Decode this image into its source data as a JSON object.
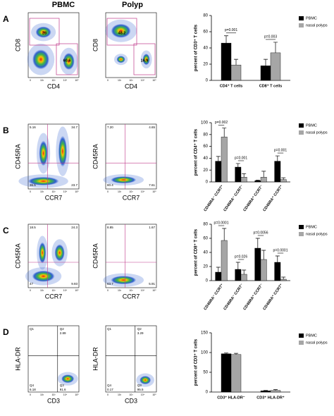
{
  "figure": {
    "columns": [
      "PBMC",
      "Polyp"
    ],
    "flow_ticks": [
      "0",
      "10²",
      "10³",
      "10⁴",
      "10⁵"
    ],
    "panels": [
      {
        "letter": "A",
        "plots": [
          {
            "ylabel": "CD8",
            "xlabel": "CD4",
            "gates": [
              "28",
              "60.6"
            ]
          },
          {
            "ylabel": "CD8",
            "xlabel": "CD4",
            "gates": [
              "48.2",
              "16.9"
            ]
          }
        ]
      },
      {
        "letter": "B",
        "plots": [
          {
            "ylabel": "CD45RA",
            "xlabel": "CCR7",
            "quadrants": {
              "ul": [
                "5.16"
              ],
              "ur": [
                "34.7"
              ],
              "ll": [
                "36.5"
              ],
              "lr": [
                "23.7"
              ]
            }
          },
          {
            "ylabel": "CD45RA",
            "xlabel": "CCR7",
            "quadrants": {
              "ul": [
                "7.20"
              ],
              "ur": [
                "4.65"
              ],
              "ll": [
                "80.4"
              ],
              "lr": [
                "7.61"
              ]
            }
          }
        ]
      },
      {
        "letter": "C",
        "plots": [
          {
            "ylabel": "CD45RA",
            "xlabel": "CCR7",
            "quadrants": {
              "ul": [
                "18.5"
              ],
              "ur": [
                "24.3"
              ],
              "ll": [
                "47"
              ],
              "lr": [
                "9.93"
              ]
            }
          },
          {
            "ylabel": "CD45RA",
            "xlabel": "CCR7",
            "quadrants": {
              "ul": [
                "8.85"
              ],
              "ur": [
                "1.67"
              ],
              "ll": [
                "83.7"
              ],
              "lr": [
                "5.91"
              ]
            }
          }
        ]
      },
      {
        "letter": "D",
        "plots": [
          {
            "ylabel": "HLA-DR",
            "xlabel": "CD3",
            "quadrants": {
              "ul": [
                "Q1"
              ],
              "ur": [
                "Q2",
                "2.89"
              ],
              "ll": [
                "Q4",
                "6.18"
              ],
              "lr": [
                "Q3",
                "91.6"
              ]
            }
          },
          {
            "ylabel": "HLA-DR",
            "xlabel": "CD3",
            "quadrants": {
              "ul": [
                "Q1"
              ],
              "ur": [
                "Q2",
                "3.29"
              ],
              "ll": [
                "Q4",
                "0.17"
              ],
              "lr": [
                "Q3",
                "95.5"
              ]
            }
          }
        ]
      }
    ]
  },
  "chart_data": [
    {
      "type": "bar",
      "ylabel": "percent of CD3⁺ T cells",
      "categories": [
        "CD4⁺ T cells",
        "CD8⁺ T cells"
      ],
      "series": [
        {
          "name": "PBMC",
          "color": "#000000",
          "values": [
            46,
            18
          ],
          "errors": [
            9,
            8
          ]
        },
        {
          "name": "nasal polyps",
          "color": "#a6a6a6",
          "values": [
            19,
            34
          ],
          "errors": [
            7,
            13
          ]
        }
      ],
      "p_values": [
        "p=0.001",
        "p=0.003"
      ],
      "ylim": [
        0,
        80
      ],
      "yticks": [
        0,
        20,
        40,
        60,
        80
      ]
    },
    {
      "type": "bar",
      "ylabel": "percent of CD4⁺ T cells",
      "categories": [
        "CD45RA⁻ CCR7⁺",
        "CD45RA⁻ CCR7⁻",
        "CD45RA⁺ CCR7⁻",
        "CD45RA⁺ CCR7⁺"
      ],
      "series": [
        {
          "name": "PBMC",
          "color": "#000000",
          "values": [
            35,
            25,
            2,
            35
          ],
          "errors": [
            8,
            6,
            1,
            9
          ]
        },
        {
          "name": "nasal polyps",
          "color": "#a6a6a6",
          "values": [
            76,
            8,
            8,
            4
          ],
          "errors": [
            15,
            6,
            10,
            3
          ]
        }
      ],
      "p_values": [
        "p=0.002",
        "p=0.001",
        null,
        "p=0.001"
      ],
      "ylim": [
        0,
        100
      ],
      "yticks": [
        0,
        20,
        40,
        60,
        80,
        100
      ]
    },
    {
      "type": "bar",
      "ylabel": "percent of CD8⁺ T cells",
      "categories": [
        "CD45RA⁻ CCR7⁺",
        "CD45RA⁻ CCR7⁻",
        "CD45RA⁺ CCR7⁻",
        "CD45RA⁺ CCR7⁺"
      ],
      "series": [
        {
          "name": "PBMC",
          "color": "#000000",
          "values": [
            12,
            16,
            46,
            26
          ],
          "errors": [
            7,
            10,
            14,
            9
          ]
        },
        {
          "name": "nasal polyps",
          "color": "#a6a6a6",
          "values": [
            57,
            9,
            30,
            2
          ],
          "errors": [
            17,
            6,
            13,
            3
          ]
        }
      ],
      "p_values": [
        "p=0.0001",
        "p=0.026",
        "p=0.0056",
        "p=0.0001"
      ],
      "ylim": [
        0,
        80
      ],
      "yticks": [
        0,
        20,
        40,
        60,
        80
      ]
    },
    {
      "type": "bar",
      "ylabel": "percent of CD3⁺ T cells",
      "categories": [
        "CD3⁺ HLA-DR⁻",
        "CD3⁺ HLA-DR⁺"
      ],
      "series": [
        {
          "name": "PBMC",
          "color": "#000000",
          "values": [
            97,
            3
          ],
          "errors": [
            2,
            1
          ]
        },
        {
          "name": "nasal polyps",
          "color": "#a6a6a6",
          "values": [
            95,
            4
          ],
          "errors": [
            3,
            2
          ]
        }
      ],
      "ylim": [
        0,
        150
      ],
      "yticks": [
        0,
        50,
        100,
        150
      ]
    }
  ]
}
